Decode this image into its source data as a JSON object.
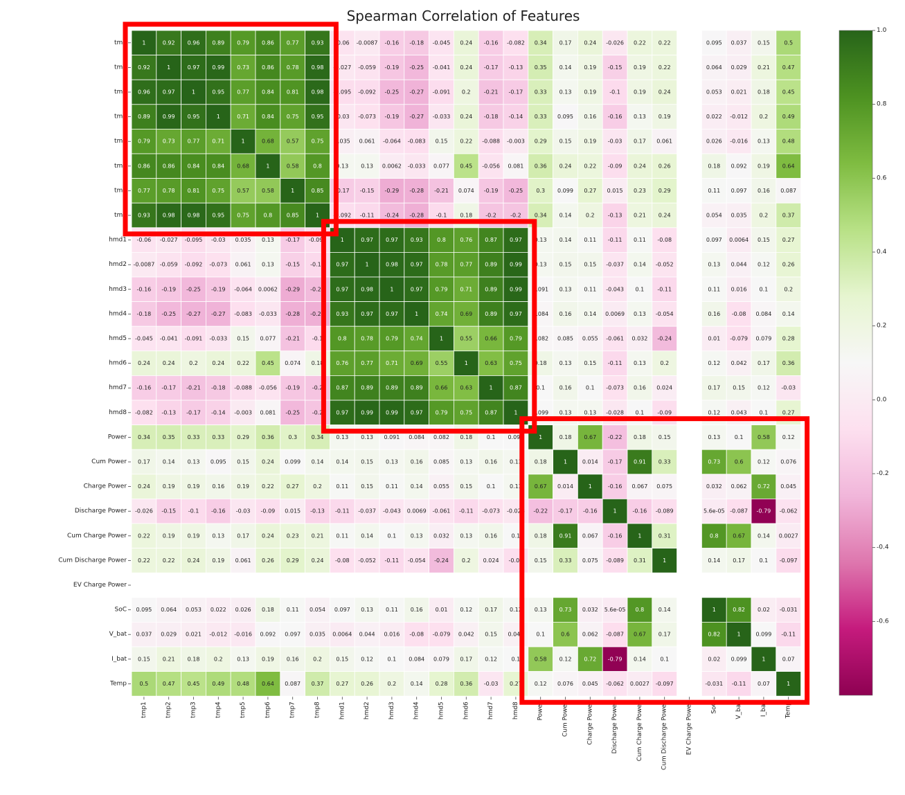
{
  "chart_data": {
    "type": "heatmap",
    "title": "Spearman Correlation of Features",
    "labels": [
      "tmp1",
      "tmp2",
      "tmp3",
      "tmp4",
      "tmp5",
      "tmp6",
      "tmp7",
      "tmp8",
      "hmd1",
      "hmd2",
      "hmd3",
      "hmd4",
      "hmd5",
      "hmd6",
      "hmd7",
      "hmd8",
      "Power",
      "Cum Power",
      "Charge Power",
      "Discharge Power",
      "Cum Charge Power",
      "Cum Discharge Power",
      "EV Charge Power",
      "SoC",
      "V_bat",
      "I_bat",
      "Temp"
    ],
    "row_labels": [
      "tmp",
      "tmp",
      "tmp",
      "tmp",
      "tmp",
      "tmp",
      "tmp",
      "tmp",
      "hmd1",
      "hmd2",
      "hmd3",
      "hmd4",
      "hmd5",
      "hmd6",
      "hmd7",
      "hmd8",
      "Power",
      "Cum Power",
      "Charge Power",
      "Discharge Power",
      "Cum Charge Power",
      "Cum Discharge Power",
      "EV Charge Power",
      "SoC",
      "V_bat",
      "I_bat",
      "Temp"
    ],
    "colormap": "PiYG",
    "vmin": -0.8,
    "vmax": 1.0,
    "colorbar_ticks": [
      "1.0",
      "0.8",
      "0.6",
      "0.4",
      "0.2",
      "0.0",
      "-0.2",
      "-0.4",
      "-0.6"
    ],
    "colorbar_tick_values": [
      1.0,
      0.8,
      0.6,
      0.4,
      0.2,
      0.0,
      -0.2,
      -0.4,
      -0.6
    ],
    "highlight_color": "#ff0000",
    "highlight_boxes": [
      {
        "rows": [
          0,
          7
        ],
        "cols": [
          0,
          7
        ]
      },
      {
        "rows": [
          8,
          15
        ],
        "cols": [
          8,
          15
        ]
      },
      {
        "rows": [
          16,
          26
        ],
        "cols": [
          16,
          26
        ]
      }
    ],
    "cells": [
      [
        "1",
        "0.92",
        "0.96",
        "0.89",
        "0.79",
        "0.86",
        "0.77",
        "0.93",
        "-0.06",
        "-0.0087",
        "-0.16",
        "-0.18",
        "-0.045",
        "0.24",
        "-0.16",
        "-0.082",
        "0.34",
        "0.17",
        "0.24",
        "-0.026",
        "0.22",
        "0.22",
        "",
        "0.095",
        "0.037",
        "0.15",
        "0.5"
      ],
      [
        "0.92",
        "1",
        "0.97",
        "0.99",
        "0.73",
        "0.86",
        "0.78",
        "0.98",
        "-0.027",
        "-0.059",
        "-0.19",
        "-0.25",
        "-0.041",
        "0.24",
        "-0.17",
        "-0.13",
        "0.35",
        "0.14",
        "0.19",
        "-0.15",
        "0.19",
        "0.22",
        "",
        "0.064",
        "0.029",
        "0.21",
        "0.47"
      ],
      [
        "0.96",
        "0.97",
        "1",
        "0.95",
        "0.77",
        "0.84",
        "0.81",
        "0.98",
        "-0.095",
        "-0.092",
        "-0.25",
        "-0.27",
        "-0.091",
        "0.2",
        "-0.21",
        "-0.17",
        "0.33",
        "0.13",
        "0.19",
        "-0.1",
        "0.19",
        "0.24",
        "",
        "0.053",
        "0.021",
        "0.18",
        "0.45"
      ],
      [
        "0.89",
        "0.99",
        "0.95",
        "1",
        "0.71",
        "0.84",
        "0.75",
        "0.95",
        "-0.03",
        "-0.073",
        "-0.19",
        "-0.27",
        "-0.033",
        "0.24",
        "-0.18",
        "-0.14",
        "0.33",
        "0.095",
        "0.16",
        "-0.16",
        "0.13",
        "0.19",
        "",
        "0.022",
        "-0.012",
        "0.2",
        "0.49"
      ],
      [
        "0.79",
        "0.73",
        "0.77",
        "0.71",
        "1",
        "0.68",
        "0.57",
        "0.75",
        "0.035",
        "0.061",
        "-0.064",
        "-0.083",
        "0.15",
        "0.22",
        "-0.088",
        "-0.003",
        "0.29",
        "0.15",
        "0.19",
        "-0.03",
        "0.17",
        "0.061",
        "",
        "0.026",
        "-0.016",
        "0.13",
        "0.48"
      ],
      [
        "0.86",
        "0.86",
        "0.84",
        "0.84",
        "0.68",
        "1",
        "0.58",
        "0.8",
        "0.13",
        "0.13",
        "0.0062",
        "-0.033",
        "0.077",
        "0.45",
        "-0.056",
        "0.081",
        "0.36",
        "0.24",
        "0.22",
        "-0.09",
        "0.24",
        "0.26",
        "",
        "0.18",
        "0.092",
        "0.19",
        "0.64"
      ],
      [
        "0.77",
        "0.78",
        "0.81",
        "0.75",
        "0.57",
        "0.58",
        "1",
        "0.85",
        "-0.17",
        "-0.15",
        "-0.29",
        "-0.28",
        "-0.21",
        "0.074",
        "-0.19",
        "-0.25",
        "0.3",
        "0.099",
        "0.27",
        "0.015",
        "0.23",
        "0.29",
        "",
        "0.11",
        "0.097",
        "0.16",
        "0.087"
      ],
      [
        "0.93",
        "0.98",
        "0.98",
        "0.95",
        "0.75",
        "0.8",
        "0.85",
        "1",
        "-0.092",
        "-0.11",
        "-0.24",
        "-0.28",
        "-0.1",
        "0.18",
        "-0.2",
        "-0.2",
        "0.34",
        "0.14",
        "0.2",
        "-0.13",
        "0.21",
        "0.24",
        "",
        "0.054",
        "0.035",
        "0.2",
        "0.37"
      ],
      [
        "-0.06",
        "-0.027",
        "-0.095",
        "-0.03",
        "0.035",
        "0.13",
        "-0.17",
        "-0.092",
        "1",
        "0.97",
        "0.97",
        "0.93",
        "0.8",
        "0.76",
        "0.87",
        "0.97",
        "0.13",
        "0.14",
        "0.11",
        "-0.11",
        "0.11",
        "-0.08",
        "",
        "0.097",
        "0.0064",
        "0.15",
        "0.27"
      ],
      [
        "-0.0087",
        "-0.059",
        "-0.092",
        "-0.073",
        "0.061",
        "0.13",
        "-0.15",
        "-0.11",
        "0.97",
        "1",
        "0.98",
        "0.97",
        "0.78",
        "0.77",
        "0.89",
        "0.99",
        "0.13",
        "0.15",
        "0.15",
        "-0.037",
        "0.14",
        "-0.052",
        "",
        "0.13",
        "0.044",
        "0.12",
        "0.26"
      ],
      [
        "-0.16",
        "-0.19",
        "-0.25",
        "-0.19",
        "-0.064",
        "0.0062",
        "-0.29",
        "-0.24",
        "0.97",
        "0.98",
        "1",
        "0.97",
        "0.79",
        "0.71",
        "0.89",
        "0.99",
        "0.091",
        "0.13",
        "0.11",
        "-0.043",
        "0.1",
        "-0.11",
        "",
        "0.11",
        "0.016",
        "0.1",
        "0.2"
      ],
      [
        "-0.18",
        "-0.25",
        "-0.27",
        "-0.27",
        "-0.083",
        "-0.033",
        "-0.28",
        "-0.28",
        "0.93",
        "0.97",
        "0.97",
        "1",
        "0.74",
        "0.69",
        "0.89",
        "0.97",
        "0.084",
        "0.16",
        "0.14",
        "0.0069",
        "0.13",
        "-0.054",
        "",
        "0.16",
        "-0.08",
        "0.084",
        "0.14"
      ],
      [
        "-0.045",
        "-0.041",
        "-0.091",
        "-0.033",
        "0.15",
        "0.077",
        "-0.21",
        "-0.1",
        "0.8",
        "0.78",
        "0.79",
        "0.74",
        "1",
        "0.55",
        "0.66",
        "0.79",
        "0.082",
        "0.085",
        "0.055",
        "-0.061",
        "0.032",
        "-0.24",
        "",
        "0.01",
        "-0.079",
        "0.079",
        "0.28"
      ],
      [
        "0.24",
        "0.24",
        "0.2",
        "0.24",
        "0.22",
        "0.45",
        "0.074",
        "0.18",
        "0.76",
        "0.77",
        "0.71",
        "0.69",
        "0.55",
        "1",
        "0.63",
        "0.75",
        "0.18",
        "0.13",
        "0.15",
        "-0.11",
        "0.13",
        "0.2",
        "",
        "0.12",
        "0.042",
        "0.17",
        "0.36"
      ],
      [
        "-0.16",
        "-0.17",
        "-0.21",
        "-0.18",
        "-0.088",
        "-0.056",
        "-0.19",
        "-0.2",
        "0.87",
        "0.89",
        "0.89",
        "0.89",
        "0.66",
        "0.63",
        "1",
        "0.87",
        "0.1",
        "0.16",
        "0.1",
        "-0.073",
        "0.16",
        "0.024",
        "",
        "0.17",
        "0.15",
        "0.12",
        "-0.03"
      ],
      [
        "-0.082",
        "-0.13",
        "-0.17",
        "-0.14",
        "-0.003",
        "0.081",
        "-0.25",
        "-0.2",
        "0.97",
        "0.99",
        "0.99",
        "0.97",
        "0.79",
        "0.75",
        "0.87",
        "1",
        "0.099",
        "0.13",
        "0.13",
        "-0.028",
        "0.1",
        "-0.09",
        "",
        "0.12",
        "0.043",
        "0.1",
        "0.27"
      ],
      [
        "0.34",
        "0.35",
        "0.33",
        "0.33",
        "0.29",
        "0.36",
        "0.3",
        "0.34",
        "0.13",
        "0.13",
        "0.091",
        "0.084",
        "0.082",
        "0.18",
        "0.1",
        "0.099",
        "1",
        "0.18",
        "0.67",
        "-0.22",
        "0.18",
        "0.15",
        "",
        "0.13",
        "0.1",
        "0.58",
        "0.12"
      ],
      [
        "0.17",
        "0.14",
        "0.13",
        "0.095",
        "0.15",
        "0.24",
        "0.099",
        "0.14",
        "0.14",
        "0.15",
        "0.13",
        "0.16",
        "0.085",
        "0.13",
        "0.16",
        "0.13",
        "0.18",
        "1",
        "0.014",
        "-0.17",
        "0.91",
        "0.33",
        "",
        "0.73",
        "0.6",
        "0.12",
        "0.076"
      ],
      [
        "0.24",
        "0.19",
        "0.19",
        "0.16",
        "0.19",
        "0.22",
        "0.27",
        "0.2",
        "0.11",
        "0.15",
        "0.11",
        "0.14",
        "0.055",
        "0.15",
        "0.1",
        "0.13",
        "0.67",
        "0.014",
        "1",
        "-0.16",
        "0.067",
        "0.075",
        "",
        "0.032",
        "0.062",
        "0.72",
        "0.045"
      ],
      [
        "-0.026",
        "-0.15",
        "-0.1",
        "-0.16",
        "-0.03",
        "-0.09",
        "0.015",
        "-0.13",
        "-0.11",
        "-0.037",
        "-0.043",
        "0.0069",
        "-0.061",
        "-0.11",
        "-0.073",
        "-0.028",
        "-0.22",
        "-0.17",
        "-0.16",
        "1",
        "-0.16",
        "-0.089",
        "",
        "5.6e-05",
        "-0.087",
        "-0.79",
        "-0.062"
      ],
      [
        "0.22",
        "0.19",
        "0.19",
        "0.13",
        "0.17",
        "0.24",
        "0.23",
        "0.21",
        "0.11",
        "0.14",
        "0.1",
        "0.13",
        "0.032",
        "0.13",
        "0.16",
        "0.1",
        "0.18",
        "0.91",
        "0.067",
        "-0.16",
        "1",
        "0.31",
        "",
        "0.8",
        "0.67",
        "0.14",
        "0.0027"
      ],
      [
        "0.22",
        "0.22",
        "0.24",
        "0.19",
        "0.061",
        "0.26",
        "0.29",
        "0.24",
        "-0.08",
        "-0.052",
        "-0.11",
        "-0.054",
        "-0.24",
        "0.2",
        "0.024",
        "-0.09",
        "0.15",
        "0.33",
        "0.075",
        "-0.089",
        "0.31",
        "1",
        "",
        "0.14",
        "0.17",
        "0.1",
        "-0.097"
      ],
      [
        "",
        "",
        "",
        "",
        "",
        "",
        "",
        "",
        "",
        "",
        "",
        "",
        "",
        "",
        "",
        "",
        "",
        "",
        "",
        "",
        "",
        "",
        "",
        "",
        "",
        "",
        ""
      ],
      [
        "0.095",
        "0.064",
        "0.053",
        "0.022",
        "0.026",
        "0.18",
        "0.11",
        "0.054",
        "0.097",
        "0.13",
        "0.11",
        "0.16",
        "0.01",
        "0.12",
        "0.17",
        "0.12",
        "0.13",
        "0.73",
        "0.032",
        "5.6e-05",
        "0.8",
        "0.14",
        "",
        "1",
        "0.82",
        "0.02",
        "-0.031"
      ],
      [
        "0.037",
        "0.029",
        "0.021",
        "-0.012",
        "-0.016",
        "0.092",
        "0.097",
        "0.035",
        "0.0064",
        "0.044",
        "0.016",
        "-0.08",
        "-0.079",
        "0.042",
        "0.15",
        "0.043",
        "0.1",
        "0.6",
        "0.062",
        "-0.087",
        "0.67",
        "0.17",
        "",
        "0.82",
        "1",
        "0.099",
        "-0.11"
      ],
      [
        "0.15",
        "0.21",
        "0.18",
        "0.2",
        "0.13",
        "0.19",
        "0.16",
        "0.2",
        "0.15",
        "0.12",
        "0.1",
        "0.084",
        "0.079",
        "0.17",
        "0.12",
        "0.1",
        "0.58",
        "0.12",
        "0.72",
        "-0.79",
        "0.14",
        "0.1",
        "",
        "0.02",
        "0.099",
        "1",
        "0.07"
      ],
      [
        "0.5",
        "0.47",
        "0.45",
        "0.49",
        "0.48",
        "0.64",
        "0.087",
        "0.37",
        "0.27",
        "0.26",
        "0.2",
        "0.14",
        "0.28",
        "0.36",
        "-0.03",
        "0.27",
        "0.12",
        "0.076",
        "0.045",
        "-0.062",
        "0.0027",
        "-0.097",
        "",
        "-0.031",
        "-0.11",
        "0.07",
        "1"
      ]
    ]
  }
}
